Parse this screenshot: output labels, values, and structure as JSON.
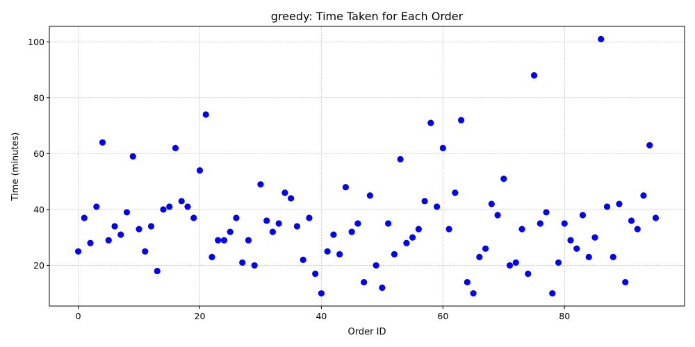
{
  "chart_data": {
    "type": "scatter",
    "title": "greedy: Time Taken for Each Order",
    "xlabel": "Order ID",
    "ylabel": "Time (minutes)",
    "xlim": [
      -4.75,
      99.75
    ],
    "ylim": [
      5.45,
      105.55
    ],
    "xticks": [
      0,
      20,
      40,
      60,
      80
    ],
    "yticks": [
      20,
      40,
      60,
      80,
      100
    ],
    "grid": true,
    "marker_color": "#0000ff",
    "x": [
      0,
      1,
      2,
      3,
      4,
      5,
      6,
      7,
      8,
      9,
      10,
      11,
      12,
      13,
      14,
      15,
      16,
      17,
      18,
      19,
      20,
      21,
      22,
      23,
      24,
      25,
      26,
      27,
      28,
      29,
      30,
      31,
      32,
      33,
      34,
      35,
      36,
      37,
      38,
      39,
      40,
      41,
      42,
      43,
      44,
      45,
      46,
      47,
      48,
      49,
      50,
      51,
      52,
      53,
      54,
      55,
      56,
      57,
      58,
      59,
      60,
      61,
      62,
      63,
      64,
      65,
      66,
      67,
      68,
      69,
      70,
      71,
      72,
      73,
      74,
      75,
      76,
      77,
      78,
      79,
      80,
      81,
      82,
      83,
      84,
      85,
      86,
      87,
      88,
      89,
      90,
      91,
      92,
      93,
      94,
      95
    ],
    "y": [
      25,
      37,
      28,
      41,
      64,
      29,
      34,
      31,
      39,
      59,
      33,
      25,
      34,
      18,
      40,
      41,
      62,
      43,
      41,
      37,
      54,
      74,
      23,
      29,
      29,
      32,
      37,
      21,
      29,
      20,
      49,
      36,
      32,
      35,
      46,
      44,
      34,
      22,
      37,
      17,
      10,
      25,
      31,
      24,
      48,
      32,
      35,
      14,
      45,
      20,
      12,
      35,
      24,
      58,
      28,
      30,
      33,
      43,
      71,
      41,
      62,
      33,
      46,
      72,
      14,
      10,
      23,
      26,
      42,
      38,
      51,
      20,
      21,
      33,
      17,
      88,
      35,
      39,
      10,
      21,
      35,
      29,
      26,
      38,
      23,
      30,
      101,
      41,
      23,
      42,
      14,
      36,
      33,
      45,
      63,
      37
    ]
  }
}
